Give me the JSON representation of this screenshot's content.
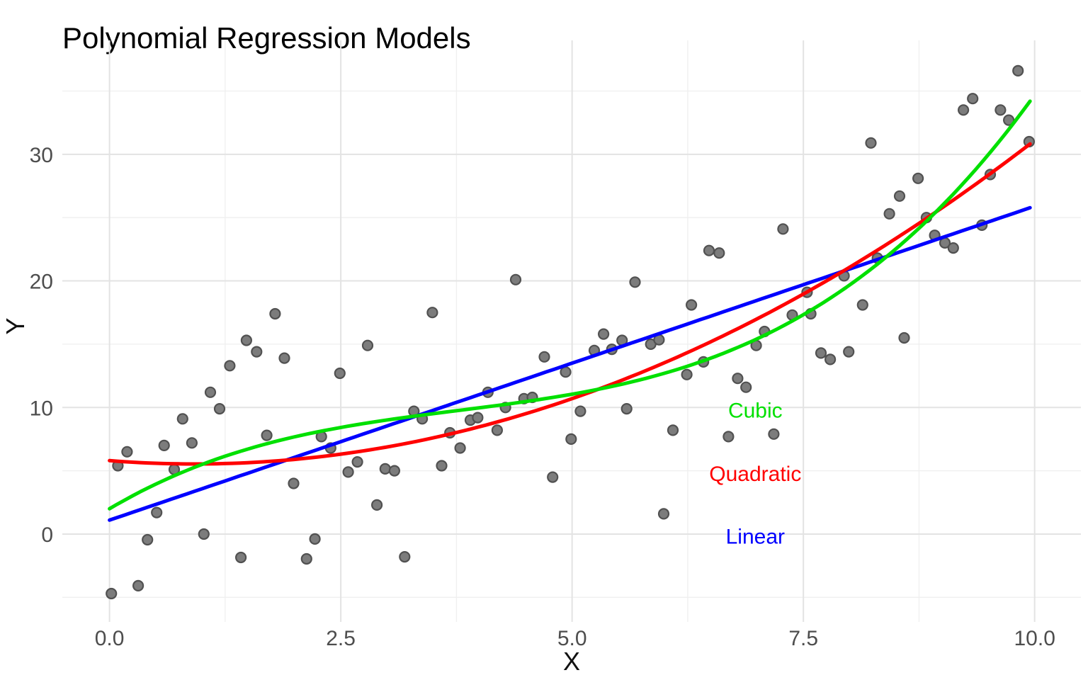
{
  "title": "Polynomial Regression Models",
  "chart_data": {
    "type": "scatter",
    "title": "Polynomial Regression Models",
    "xlabel": "X",
    "ylabel": "Y",
    "xlim": [
      -0.51,
      10.5
    ],
    "ylim": [
      -6.94,
      39.0
    ],
    "grid": true,
    "legend_position": "inline-annotations",
    "x_ticks": {
      "values": [
        0,
        2.5,
        5,
        7.5,
        10
      ],
      "labels": [
        "0.0",
        "2.5",
        "5.0",
        "7.5",
        "10.0"
      ]
    },
    "x_minor_ticks": [
      1.25,
      3.75,
      6.25,
      8.75
    ],
    "y_ticks": {
      "values": [
        0,
        10,
        20,
        30
      ],
      "labels": [
        "0",
        "10",
        "20",
        "30"
      ]
    },
    "y_minor_ticks": [
      -5,
      5,
      15,
      25,
      35
    ],
    "points": [
      [
        0.02,
        -4.7
      ],
      [
        0.09,
        5.4
      ],
      [
        0.19,
        6.5
      ],
      [
        0.31,
        -4.08
      ],
      [
        0.41,
        -0.45
      ],
      [
        0.51,
        1.7
      ],
      [
        0.59,
        7.0
      ],
      [
        0.7,
        5.1
      ],
      [
        0.79,
        9.1
      ],
      [
        0.89,
        7.2
      ],
      [
        1.02,
        0.0
      ],
      [
        1.09,
        11.2
      ],
      [
        1.19,
        9.9
      ],
      [
        1.3,
        13.3
      ],
      [
        1.42,
        -1.85
      ],
      [
        1.48,
        15.3
      ],
      [
        1.59,
        14.4
      ],
      [
        1.7,
        7.8
      ],
      [
        1.79,
        17.4
      ],
      [
        1.89,
        13.9
      ],
      [
        1.99,
        4.0
      ],
      [
        2.13,
        -1.96
      ],
      [
        2.22,
        -0.39
      ],
      [
        2.29,
        7.7
      ],
      [
        2.39,
        6.8
      ],
      [
        2.49,
        12.7
      ],
      [
        2.58,
        4.9
      ],
      [
        2.68,
        5.7
      ],
      [
        2.79,
        14.9
      ],
      [
        2.89,
        2.3
      ],
      [
        2.98,
        5.15
      ],
      [
        3.08,
        5.0
      ],
      [
        3.19,
        -1.8
      ],
      [
        3.29,
        9.7
      ],
      [
        3.38,
        9.1
      ],
      [
        3.49,
        17.5
      ],
      [
        3.59,
        5.4
      ],
      [
        3.68,
        8.0
      ],
      [
        3.79,
        6.8
      ],
      [
        3.9,
        9.0
      ],
      [
        3.98,
        9.2
      ],
      [
        4.09,
        11.2
      ],
      [
        4.19,
        8.2
      ],
      [
        4.28,
        10.0
      ],
      [
        4.39,
        20.1
      ],
      [
        4.48,
        10.7
      ],
      [
        4.57,
        10.8
      ],
      [
        4.7,
        14.0
      ],
      [
        4.79,
        4.5
      ],
      [
        4.93,
        12.8
      ],
      [
        4.99,
        7.5
      ],
      [
        5.09,
        9.7
      ],
      [
        5.24,
        14.5
      ],
      [
        5.34,
        15.8
      ],
      [
        5.43,
        14.6
      ],
      [
        5.54,
        15.3
      ],
      [
        5.59,
        9.9
      ],
      [
        5.68,
        19.9
      ],
      [
        5.85,
        15.0
      ],
      [
        5.94,
        15.35
      ],
      [
        5.99,
        1.6
      ],
      [
        6.09,
        8.2
      ],
      [
        6.24,
        12.6
      ],
      [
        6.29,
        18.1
      ],
      [
        6.42,
        13.6
      ],
      [
        6.48,
        22.4
      ],
      [
        6.59,
        22.2
      ],
      [
        6.69,
        7.7
      ],
      [
        6.79,
        12.3
      ],
      [
        6.88,
        11.6
      ],
      [
        6.99,
        14.9
      ],
      [
        7.08,
        16.0
      ],
      [
        7.18,
        7.9
      ],
      [
        7.28,
        24.1
      ],
      [
        7.38,
        17.3
      ],
      [
        7.54,
        19.1
      ],
      [
        7.58,
        17.4
      ],
      [
        7.69,
        14.3
      ],
      [
        7.79,
        13.8
      ],
      [
        7.94,
        20.4
      ],
      [
        7.99,
        14.4
      ],
      [
        8.14,
        18.1
      ],
      [
        8.23,
        30.9
      ],
      [
        8.3,
        21.8
      ],
      [
        8.43,
        25.3
      ],
      [
        8.54,
        26.7
      ],
      [
        8.59,
        15.5
      ],
      [
        8.74,
        28.1
      ],
      [
        8.83,
        25.0
      ],
      [
        8.92,
        23.6
      ],
      [
        9.03,
        23.0
      ],
      [
        9.12,
        22.6
      ],
      [
        9.23,
        33.5
      ],
      [
        9.33,
        34.4
      ],
      [
        9.43,
        24.4
      ],
      [
        9.52,
        28.4
      ],
      [
        9.63,
        33.5
      ],
      [
        9.72,
        32.7
      ],
      [
        9.82,
        36.6
      ],
      [
        9.94,
        31.0
      ]
    ],
    "series": [
      {
        "name": "Linear",
        "type": "line",
        "color": "#0000FF",
        "poly_coeffs": [
          1.1,
          2.48
        ],
        "x_range": [
          0,
          9.95
        ],
        "label": "Linear",
        "label_pos": [
          6.98,
          -0.15
        ]
      },
      {
        "name": "Quadratic",
        "type": "line",
        "color": "#FF0000",
        "poly_coeffs": [
          5.8,
          -0.57,
          0.31
        ],
        "x_range": [
          0,
          9.95
        ],
        "label": "Quadratic",
        "label_pos": [
          6.98,
          4.8
        ]
      },
      {
        "name": "Cubic",
        "type": "line",
        "color": "#00E000",
        "poly_coeffs": [
          2.0,
          4.32,
          -0.899,
          0.0794
        ],
        "x_range": [
          0,
          9.95
        ],
        "label": "Cubic",
        "label_pos": [
          6.98,
          9.83
        ]
      }
    ],
    "point_style": {
      "fill": "#7C7C7C",
      "stroke": "#515151",
      "stroke_width": 2.2,
      "radius": 7
    },
    "line_width": 5,
    "grid_major_color": "#E3E3E3",
    "grid_minor_color": "#EFEFEF",
    "tick_label_color": "#4D4D4D",
    "axis_title_color": "#111111",
    "background": "#FFFFFF"
  }
}
